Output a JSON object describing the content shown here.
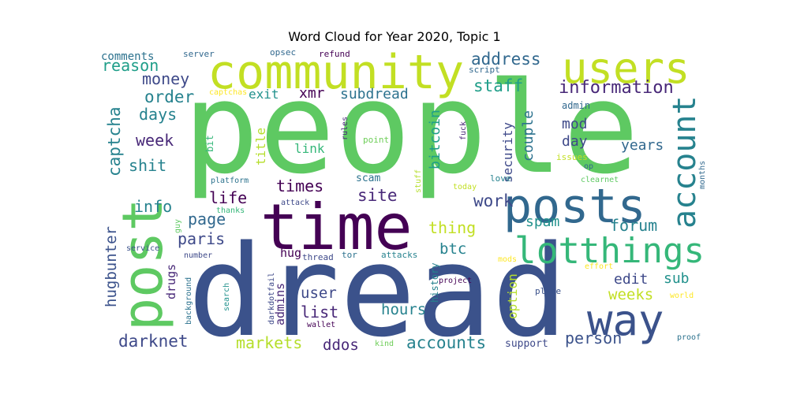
{
  "chart_data": {
    "type": "wordcloud",
    "title": "Word Cloud for Year 2020, Topic 1",
    "words": [
      {
        "text": "people",
        "weight": 100,
        "color": "#5ec962"
      },
      {
        "text": "dread",
        "weight": 98,
        "color": "#3b528b"
      },
      {
        "text": "time",
        "weight": 62,
        "color": "#440154"
      },
      {
        "text": "post",
        "weight": 52,
        "color": "#5ec962"
      },
      {
        "text": "community",
        "weight": 48,
        "color": "#c2df23"
      },
      {
        "text": "posts",
        "weight": 46,
        "color": "#31688e"
      },
      {
        "text": "users",
        "weight": 40,
        "color": "#c2df23"
      },
      {
        "text": "way",
        "weight": 38,
        "color": "#3b528b"
      },
      {
        "text": "lot",
        "weight": 36,
        "color": "#35b779"
      },
      {
        "text": "things",
        "weight": 34,
        "color": "#35b779"
      },
      {
        "text": "account",
        "weight": 33,
        "color": "#26828e"
      },
      {
        "text": "information",
        "weight": 20,
        "color": "#482878"
      },
      {
        "text": "address",
        "weight": 19,
        "color": "#31688e"
      },
      {
        "text": "markets",
        "weight": 18,
        "color": "#b5de2b"
      },
      {
        "text": "site",
        "weight": 19,
        "color": "#482878"
      },
      {
        "text": "work",
        "weight": 19,
        "color": "#3e4989"
      },
      {
        "text": "accounts",
        "weight": 19,
        "color": "#26828e"
      },
      {
        "text": "darknet",
        "weight": 19,
        "color": "#3e4989"
      },
      {
        "text": "person",
        "weight": 18,
        "color": "#3b528b"
      },
      {
        "text": "captcha",
        "weight": 19,
        "color": "#26828e"
      },
      {
        "text": "forum",
        "weight": 18,
        "color": "#26828e"
      },
      {
        "text": "staff",
        "weight": 19,
        "color": "#1f9e89"
      },
      {
        "text": "reason",
        "weight": 18,
        "color": "#1f9e89"
      },
      {
        "text": "money",
        "weight": 18,
        "color": "#3e4989"
      },
      {
        "text": "order",
        "weight": 19,
        "color": "#26828e"
      },
      {
        "text": "days",
        "weight": 18,
        "color": "#26828e"
      },
      {
        "text": "shit",
        "weight": 18,
        "color": "#26828e"
      },
      {
        "text": "week",
        "weight": 18,
        "color": "#482878"
      },
      {
        "text": "hugbunter",
        "weight": 17,
        "color": "#3b528b"
      },
      {
        "text": "info",
        "weight": 18,
        "color": "#26828e"
      },
      {
        "text": "life",
        "weight": 18,
        "color": "#440154"
      },
      {
        "text": "page",
        "weight": 18,
        "color": "#31688e"
      },
      {
        "text": "paris",
        "weight": 18,
        "color": "#3e4989"
      },
      {
        "text": "times",
        "weight": 18,
        "color": "#440154"
      },
      {
        "text": "user",
        "weight": 17,
        "color": "#3e4989"
      },
      {
        "text": "list",
        "weight": 18,
        "color": "#482878"
      },
      {
        "text": "ddos",
        "weight": 17,
        "color": "#482878"
      },
      {
        "text": "hours",
        "weight": 17,
        "color": "#26828e"
      },
      {
        "text": "thing",
        "weight": 18,
        "color": "#c2df23"
      },
      {
        "text": "btc",
        "weight": 17,
        "color": "#26828e"
      },
      {
        "text": "spam",
        "weight": 16,
        "color": "#21918c"
      },
      {
        "text": "edit",
        "weight": 16,
        "color": "#3e4989"
      },
      {
        "text": "sub",
        "weight": 16,
        "color": "#21918c"
      },
      {
        "text": "weeks",
        "weight": 17,
        "color": "#c2df23"
      },
      {
        "text": "years",
        "weight": 16,
        "color": "#31688e"
      },
      {
        "text": "day",
        "weight": 16,
        "color": "#3e4989"
      },
      {
        "text": "mod",
        "weight": 16,
        "color": "#3e4989"
      },
      {
        "text": "couple",
        "weight": 16,
        "color": "#2c728e"
      },
      {
        "text": "security",
        "weight": 15,
        "color": "#3e4989"
      },
      {
        "text": "bitcoin",
        "weight": 16,
        "color": "#1f9e89"
      },
      {
        "text": "subdread",
        "weight": 16,
        "color": "#2c728e"
      },
      {
        "text": "xmr",
        "weight": 16,
        "color": "#440154"
      },
      {
        "text": "exit",
        "weight": 15,
        "color": "#21918c"
      },
      {
        "text": "title",
        "weight": 15,
        "color": "#b5de2b"
      },
      {
        "text": "link",
        "weight": 15,
        "color": "#35b779"
      },
      {
        "text": "comments",
        "weight": 13,
        "color": "#2c728e"
      },
      {
        "text": "hug",
        "weight": 14,
        "color": "#440154"
      },
      {
        "text": "drugs",
        "weight": 14,
        "color": "#482878"
      },
      {
        "text": "admins",
        "weight": 14,
        "color": "#482878"
      },
      {
        "text": "option",
        "weight": 15,
        "color": "#b5de2b"
      },
      {
        "text": "history",
        "weight": 11,
        "color": "#26828e"
      },
      {
        "text": "support",
        "weight": 12,
        "color": "#3e4989"
      },
      {
        "text": "scam",
        "weight": 12,
        "color": "#2c728e"
      },
      {
        "text": "admin",
        "weight": 11,
        "color": "#31688e"
      },
      {
        "text": "bit",
        "weight": 11,
        "color": "#35b779"
      },
      {
        "text": "point",
        "weight": 10,
        "color": "#6ece58"
      },
      {
        "text": "rules",
        "weight": 9,
        "color": "#482878"
      },
      {
        "text": "fuck",
        "weight": 9,
        "color": "#482878"
      },
      {
        "text": "server",
        "weight": 10,
        "color": "#31688e"
      },
      {
        "text": "opsec",
        "weight": 10,
        "color": "#31688e"
      },
      {
        "text": "refund",
        "weight": 10,
        "color": "#440154"
      },
      {
        "text": "script",
        "weight": 10,
        "color": "#31688e"
      },
      {
        "text": "captchas",
        "weight": 9,
        "color": "#fde725"
      },
      {
        "text": "platform",
        "weight": 9,
        "color": "#2c728e"
      },
      {
        "text": "issues",
        "weight": 10,
        "color": "#c2df23"
      },
      {
        "text": "op",
        "weight": 9,
        "color": "#31688e"
      },
      {
        "text": "months",
        "weight": 9,
        "color": "#31688e"
      },
      {
        "text": "clearnet",
        "weight": 9,
        "color": "#5ec962"
      },
      {
        "text": "love",
        "weight": 10,
        "color": "#26828e"
      },
      {
        "text": "today",
        "weight": 9,
        "color": "#c2df23"
      },
      {
        "text": "stuff",
        "weight": 9,
        "color": "#b5de2b"
      },
      {
        "text": "thanks",
        "weight": 9,
        "color": "#35b779"
      },
      {
        "text": "attack",
        "weight": 9,
        "color": "#3e4989"
      },
      {
        "text": "guy",
        "weight": 9,
        "color": "#5ec962"
      },
      {
        "text": "service",
        "weight": 9,
        "color": "#3b528b"
      },
      {
        "text": "number",
        "weight": 9,
        "color": "#3e4989"
      },
      {
        "text": "thread",
        "weight": 10,
        "color": "#3e4989"
      },
      {
        "text": "tor",
        "weight": 10,
        "color": "#2c728e"
      },
      {
        "text": "attacks",
        "weight": 10,
        "color": "#26828e"
      },
      {
        "text": "mods",
        "weight": 9,
        "color": "#fde725"
      },
      {
        "text": "effort",
        "weight": 9,
        "color": "#fde725"
      },
      {
        "text": "background",
        "weight": 9,
        "color": "#2c728e"
      },
      {
        "text": "darkdotfail",
        "weight": 9,
        "color": "#3e4989"
      },
      {
        "text": "search",
        "weight": 9,
        "color": "#21918c"
      },
      {
        "text": "project",
        "weight": 9,
        "color": "#440154"
      },
      {
        "text": "place",
        "weight": 10,
        "color": "#3b528b"
      },
      {
        "text": "world",
        "weight": 9,
        "color": "#fde725"
      },
      {
        "text": "wallet",
        "weight": 9,
        "color": "#440154"
      },
      {
        "text": "kind",
        "weight": 9,
        "color": "#6ece58"
      },
      {
        "text": "proof",
        "weight": 9,
        "color": "#2c728e"
      }
    ]
  }
}
